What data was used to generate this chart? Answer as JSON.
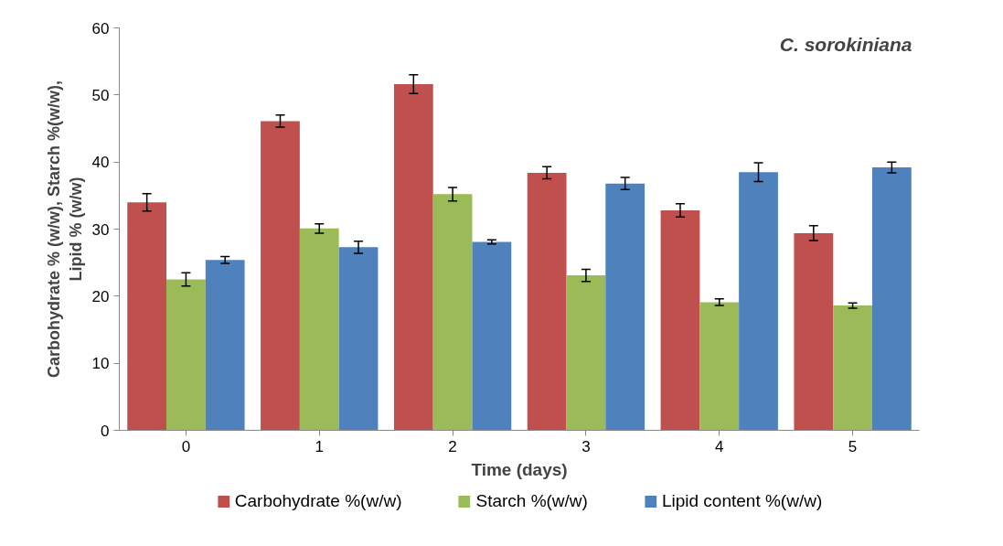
{
  "chart_data": {
    "type": "bar",
    "title": "C. sorokiniana",
    "xlabel": "Time (days)",
    "ylabel": "Carbohydrate % (w/w), Starch %(w/w), Lipid % (w/w)",
    "categories": [
      "0",
      "1",
      "2",
      "3",
      "4",
      "5"
    ],
    "series": [
      {
        "name": "Carbohydrate %(w/w)",
        "color": "#c0504d",
        "values": [
          34.0,
          46.1,
          51.6,
          38.4,
          32.8,
          29.4
        ],
        "errors": [
          1.3,
          0.9,
          1.4,
          0.9,
          1.0,
          1.1
        ]
      },
      {
        "name": "Starch %(w/w)",
        "color": "#9bbb59",
        "values": [
          22.5,
          30.1,
          35.2,
          23.1,
          19.1,
          18.6
        ],
        "errors": [
          1.0,
          0.7,
          1.0,
          0.9,
          0.5,
          0.4
        ]
      },
      {
        "name": "Lipid content %(w/w)",
        "color": "#4f81bd",
        "values": [
          25.4,
          27.3,
          28.1,
          36.8,
          38.5,
          39.2
        ],
        "errors": [
          0.5,
          0.9,
          0.3,
          0.9,
          1.4,
          0.8
        ]
      }
    ],
    "ylim": [
      0,
      60
    ],
    "yticks": [
      0,
      10,
      20,
      30,
      40,
      50,
      60
    ],
    "grid": false,
    "legend": "bottom"
  }
}
